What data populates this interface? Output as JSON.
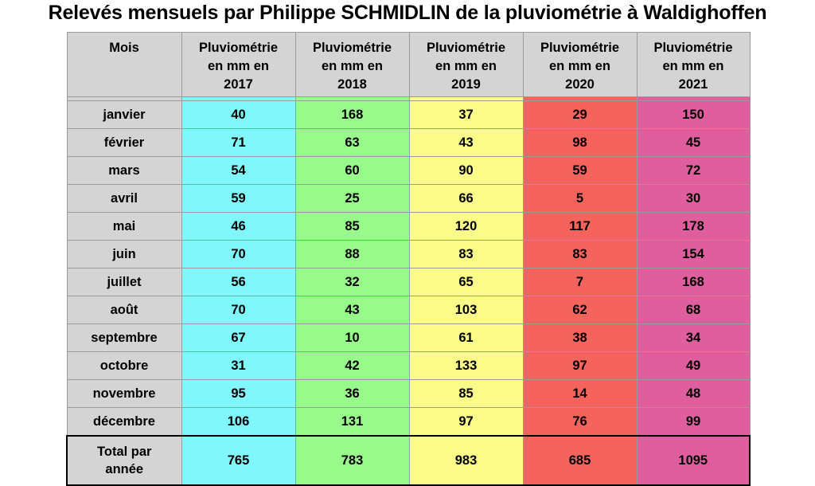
{
  "title": "Relevés mensuels par Philippe SCHMIDLIN de la pluviométrie à Waldighoffen",
  "table": {
    "month_header": "Mois",
    "year_headers": [
      "Pluviométrie en mm en 2017",
      "Pluviométrie en mm en 2018",
      "Pluviométrie en mm en 2019",
      "Pluviométrie en mm en 2020",
      "Pluviométrie en mm en 2021"
    ],
    "total_label": "Total par année",
    "colors": {
      "header_bg": "#d4d4d4",
      "y2017": "#7ff7fb",
      "y2018": "#98fa8a",
      "y2019": "#fbfb8a",
      "y2020": "#f4645c",
      "y2021": "#df5f9e"
    }
  },
  "chart_data": {
    "type": "table",
    "title": "Relevés mensuels par Philippe SCHMIDLIN de la pluviométrie à Waldighoffen",
    "categories": [
      "janvier",
      "février",
      "mars",
      "avril",
      "mai",
      "juin",
      "juillet",
      "août",
      "septembre",
      "octobre",
      "novembre",
      "décembre"
    ],
    "series": [
      {
        "name": "Pluviométrie en mm en 2017",
        "values": [
          40,
          71,
          54,
          59,
          46,
          70,
          56,
          70,
          67,
          31,
          95,
          106
        ],
        "total": 765
      },
      {
        "name": "Pluviométrie en mm en 2018",
        "values": [
          168,
          63,
          60,
          25,
          85,
          88,
          32,
          43,
          10,
          42,
          36,
          131
        ],
        "total": 783
      },
      {
        "name": "Pluviométrie en mm en 2019",
        "values": [
          37,
          43,
          90,
          66,
          120,
          83,
          65,
          103,
          61,
          133,
          85,
          97
        ],
        "total": 983
      },
      {
        "name": "Pluviométrie en mm en 2020",
        "values": [
          29,
          98,
          59,
          5,
          117,
          83,
          7,
          62,
          38,
          97,
          14,
          76
        ],
        "total": 685
      },
      {
        "name": "Pluviométrie en mm en 2021",
        "values": [
          150,
          45,
          72,
          30,
          178,
          154,
          168,
          68,
          34,
          49,
          48,
          99
        ],
        "total": 1095
      }
    ]
  }
}
